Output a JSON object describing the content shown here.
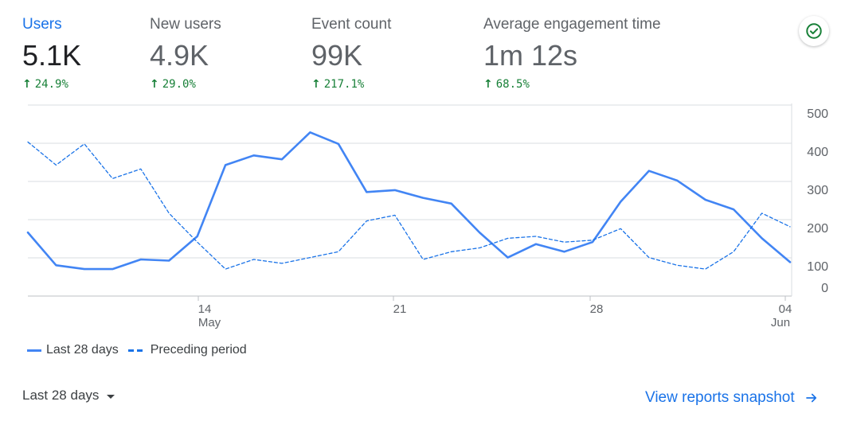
{
  "metrics": [
    {
      "label": "Users",
      "value": "5.1K",
      "change": "24.9%",
      "active": true
    },
    {
      "label": "New users",
      "value": "4.9K",
      "change": "29.0%",
      "active": false
    },
    {
      "label": "Event count",
      "value": "99K",
      "change": "217.1%",
      "active": false
    },
    {
      "label": "Average engagement time",
      "value": "1m 12s",
      "change": "68.5%",
      "active": false
    }
  ],
  "status_icon": "check-circle-icon",
  "colors": {
    "accent": "#1a73e8",
    "series_current": "#4285f4",
    "series_previous": "#1a73e8",
    "positive": "#188038",
    "grid": "#dadce0"
  },
  "chart_data": {
    "type": "line",
    "x_tick_labels": [
      {
        "day": "14",
        "month": "May"
      },
      {
        "day": "21",
        "month": ""
      },
      {
        "day": "28",
        "month": ""
      },
      {
        "day": "04",
        "month": "Jun"
      }
    ],
    "y_tick_labels": [
      "500",
      "400",
      "300",
      "200",
      "100",
      "0"
    ],
    "ylim": [
      0,
      500
    ],
    "grid": true,
    "legend_position": "bottom-left",
    "series": [
      {
        "name": "Last 28 days",
        "style": "solid",
        "values": [
          165,
          80,
          70,
          70,
          95,
          92,
          155,
          340,
          365,
          355,
          425,
          395,
          270,
          275,
          255,
          240,
          165,
          100,
          135,
          115,
          140,
          245,
          325,
          300,
          250,
          225,
          150,
          88
        ]
      },
      {
        "name": "Preceding period",
        "style": "dashed",
        "values": [
          400,
          340,
          395,
          305,
          330,
          215,
          140,
          70,
          95,
          85,
          100,
          115,
          195,
          210,
          95,
          115,
          125,
          150,
          155,
          140,
          145,
          175,
          100,
          80,
          70,
          115,
          215,
          180
        ]
      }
    ]
  },
  "legend": {
    "current": "Last 28 days",
    "previous": "Preceding period"
  },
  "footer": {
    "range_label": "Last 28 days",
    "link_label": "View reports snapshot"
  }
}
